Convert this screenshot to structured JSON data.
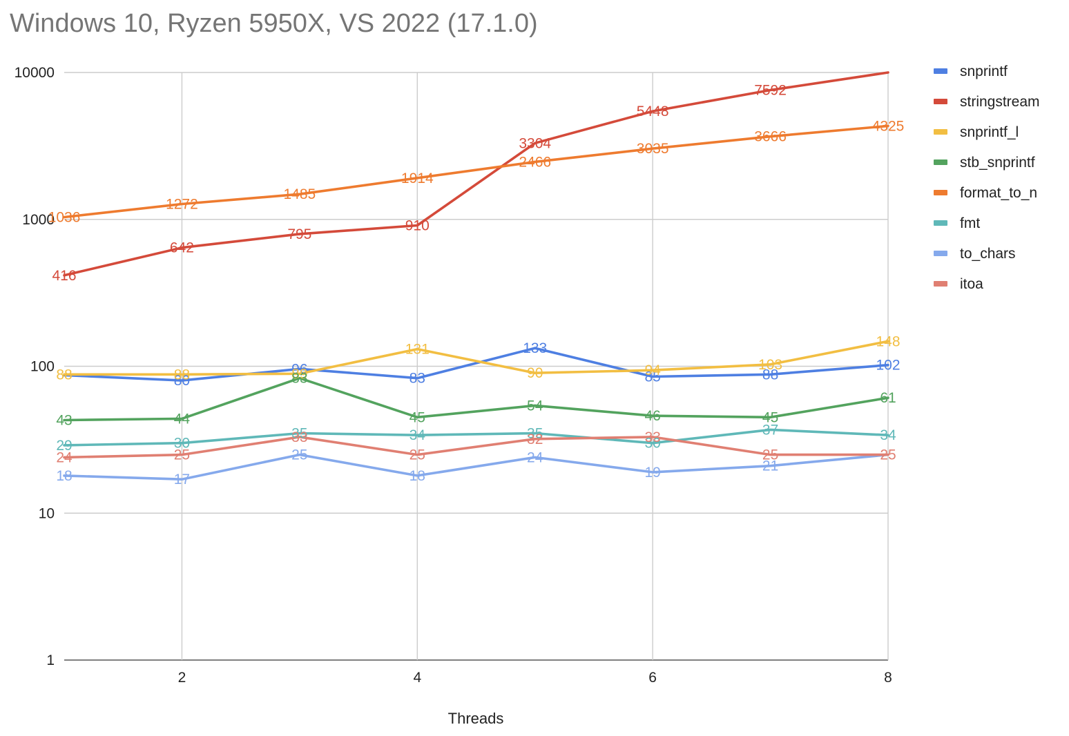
{
  "chart_data": {
    "type": "line",
    "title": "Windows 10, Ryzen 5950X, VS 2022 (17.1.0)",
    "xlabel": "Threads",
    "ylabel": "",
    "x": [
      1,
      2,
      3,
      4,
      5,
      6,
      7,
      8
    ],
    "xlim": [
      1,
      8
    ],
    "x_ticks": [
      2,
      4,
      6,
      8
    ],
    "y_scale": "log",
    "ylim": [
      1,
      10000
    ],
    "y_ticks": [
      1,
      10,
      100,
      1000,
      10000
    ],
    "grid": true,
    "legend_position": "right",
    "series": [
      {
        "name": "snprintf",
        "color": "#4e7fe2",
        "values": [
          87,
          80,
          96,
          83,
          133,
          85,
          88,
          102
        ],
        "labels": [
          "",
          "80",
          "96",
          "83",
          "133",
          "85",
          "88",
          "102"
        ]
      },
      {
        "name": "stringstream",
        "color": "#d44a3a",
        "values": [
          416,
          642,
          795,
          910,
          3304,
          5448,
          7592,
          10000
        ],
        "labels": [
          "416",
          "642",
          "795",
          "910",
          "3304",
          "5448",
          "7592",
          ""
        ]
      },
      {
        "name": "snprintf_l",
        "color": "#f2be42",
        "values": [
          88,
          88,
          89,
          131,
          90,
          94,
          103,
          148
        ],
        "labels": [
          "88",
          "88",
          "89",
          "131",
          "90",
          "94",
          "103",
          "148"
        ]
      },
      {
        "name": "stb_snprintf",
        "color": "#53a35e",
        "values": [
          43,
          44,
          83,
          45,
          54,
          46,
          45,
          61
        ],
        "labels": [
          "43",
          "44",
          "83",
          "45",
          "54",
          "46",
          "45",
          "61"
        ]
      },
      {
        "name": "format_to_n",
        "color": "#ee7b2f",
        "values": [
          1036,
          1272,
          1485,
          1914,
          2466,
          3035,
          3666,
          4325
        ],
        "labels": [
          "1036",
          "1272",
          "1485",
          "1914",
          "2466",
          "3035",
          "3666",
          "4325"
        ]
      },
      {
        "name": "fmt",
        "color": "#5fb8b8",
        "values": [
          29,
          30,
          35,
          34,
          35,
          30,
          37,
          34
        ],
        "labels": [
          "29",
          "30",
          "35",
          "34",
          "35",
          "30",
          "37",
          "34"
        ]
      },
      {
        "name": "to_chars",
        "color": "#85a9ec",
        "values": [
          18,
          17,
          25,
          18,
          24,
          19,
          21,
          25
        ],
        "labels": [
          "18",
          "17",
          "25",
          "18",
          "24",
          "19",
          "21",
          ""
        ]
      },
      {
        "name": "itoa",
        "color": "#e07f72",
        "values": [
          24,
          25,
          33,
          25,
          32,
          33,
          25,
          25
        ],
        "labels": [
          "24",
          "25",
          "33",
          "25",
          "32",
          "33",
          "25",
          "25"
        ]
      }
    ]
  }
}
